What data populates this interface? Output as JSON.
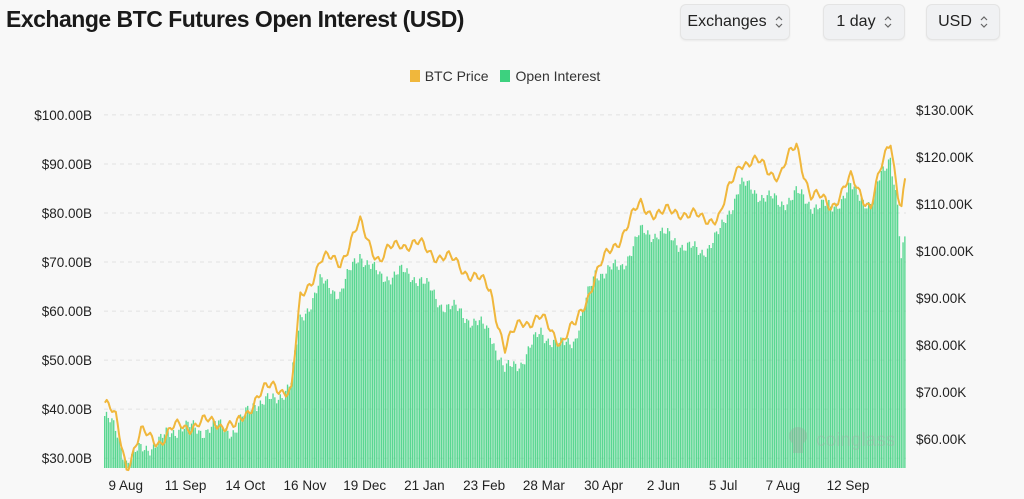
{
  "header": {
    "title": "Exchange BTC Futures Open Interest (USD)"
  },
  "controls": [
    {
      "label": "Exchanges"
    },
    {
      "label": "1 day"
    },
    {
      "label": "USD"
    }
  ],
  "watermark": "coinglass",
  "colors": {
    "price": "#f0b73c",
    "oi": "#3dd17f",
    "grid": "#e2e2e2"
  },
  "chart_data": {
    "type": "bar+line",
    "title": "Exchange BTC Futures Open Interest (USD)",
    "legend": [
      "BTC Price",
      "Open Interest"
    ],
    "legend_position": "top-center",
    "x_days": 443,
    "x_ticks": [
      {
        "day": 12,
        "label": "9 Aug"
      },
      {
        "day": 45,
        "label": "11 Sep"
      },
      {
        "day": 78,
        "label": "14 Oct"
      },
      {
        "day": 111,
        "label": "16 Nov"
      },
      {
        "day": 144,
        "label": "19 Dec"
      },
      {
        "day": 177,
        "label": "21 Jan"
      },
      {
        "day": 210,
        "label": "23 Feb"
      },
      {
        "day": 243,
        "label": "28 Mar"
      },
      {
        "day": 276,
        "label": "30 Apr"
      },
      {
        "day": 309,
        "label": "2 Jun"
      },
      {
        "day": 342,
        "label": "5 Jul"
      },
      {
        "day": 375,
        "label": "7 Aug"
      },
      {
        "day": 411,
        "label": "12 Sep"
      }
    ],
    "y_left": {
      "label": "Open Interest",
      "ylim": [
        28,
        101
      ],
      "ticks": [
        {
          "v": 30,
          "label": "$30.00B"
        },
        {
          "v": 40,
          "label": "$40.00B"
        },
        {
          "v": 50,
          "label": "$50.00B"
        },
        {
          "v": 60,
          "label": "$60.00B"
        },
        {
          "v": 70,
          "label": "$70.00B"
        },
        {
          "v": 80,
          "label": "$80.00B"
        },
        {
          "v": 90,
          "label": "$90.00B"
        },
        {
          "v": 100,
          "label": "$100.00B"
        }
      ]
    },
    "y_right": {
      "label": "BTC Price",
      "ylim": [
        53.8,
        130
      ],
      "ticks": [
        {
          "v": 60,
          "label": "$60.00K"
        },
        {
          "v": 70,
          "label": "$70.00K"
        },
        {
          "v": 80,
          "label": "$80.00K"
        },
        {
          "v": 90,
          "label": "$90.00K"
        },
        {
          "v": 100,
          "label": "$100.00K"
        },
        {
          "v": 110,
          "label": "$110.00K"
        },
        {
          "v": 120,
          "label": "$120.00K"
        },
        {
          "v": 130,
          "label": "$130.00K"
        }
      ]
    },
    "series": [
      {
        "name": "Open Interest",
        "unit": "B USD",
        "points": [
          [
            0,
            38.6
          ],
          [
            6,
            35.6
          ],
          [
            12,
            29.6
          ],
          [
            20,
            31.6
          ],
          [
            31,
            33.6
          ],
          [
            42,
            36.6
          ],
          [
            53,
            35.6
          ],
          [
            61,
            36.6
          ],
          [
            72,
            35.6
          ],
          [
            83,
            41.6
          ],
          [
            94,
            41.6
          ],
          [
            103,
            45.7
          ],
          [
            108,
            57.7
          ],
          [
            119,
            65.8
          ],
          [
            130,
            63.8
          ],
          [
            141,
            71.8
          ],
          [
            152,
            66.8
          ],
          [
            163,
            67.8
          ],
          [
            174,
            66.8
          ],
          [
            185,
            61.8
          ],
          [
            196,
            59.8
          ],
          [
            213,
            55.7
          ],
          [
            221,
            47.7
          ],
          [
            230,
            49.7
          ],
          [
            241,
            55.7
          ],
          [
            252,
            52.7
          ],
          [
            260,
            54.7
          ],
          [
            271,
            67.8
          ],
          [
            285,
            68.8
          ],
          [
            296,
            75.9
          ],
          [
            307,
            75.9
          ],
          [
            318,
            73.8
          ],
          [
            329,
            71.8
          ],
          [
            340,
            75.9
          ],
          [
            351,
            85.9
          ],
          [
            362,
            83.9
          ],
          [
            373,
            81.9
          ],
          [
            382,
            83.9
          ],
          [
            390,
            81.9
          ],
          [
            401,
            80.9
          ],
          [
            412,
            84.9
          ],
          [
            423,
            81.9
          ],
          [
            434,
            91.9
          ],
          [
            438,
            81.9
          ],
          [
            440,
            69.8
          ],
          [
            442,
            74.6
          ]
        ]
      },
      {
        "name": "BTC Price",
        "unit": "K USD",
        "points": [
          [
            0,
            67.7
          ],
          [
            6,
            64
          ],
          [
            12,
            54.5
          ],
          [
            20,
            60.9
          ],
          [
            31,
            59.8
          ],
          [
            42,
            63
          ],
          [
            53,
            63
          ],
          [
            61,
            64
          ],
          [
            72,
            62
          ],
          [
            83,
            68.7
          ],
          [
            94,
            71.5
          ],
          [
            103,
            70
          ],
          [
            108,
            89.6
          ],
          [
            119,
            98
          ],
          [
            130,
            98
          ],
          [
            141,
            105.5
          ],
          [
            152,
            98
          ],
          [
            163,
            102
          ],
          [
            174,
            101
          ],
          [
            185,
            99
          ],
          [
            196,
            97
          ],
          [
            213,
            91.7
          ],
          [
            221,
            79
          ],
          [
            230,
            85.3
          ],
          [
            241,
            85.3
          ],
          [
            252,
            81
          ],
          [
            260,
            84
          ],
          [
            271,
            95
          ],
          [
            285,
            103.4
          ],
          [
            296,
            109.8
          ],
          [
            307,
            107.7
          ],
          [
            318,
            108.7
          ],
          [
            329,
            106.6
          ],
          [
            340,
            107.7
          ],
          [
            351,
            119.4
          ],
          [
            362,
            118.3
          ],
          [
            373,
            116.2
          ],
          [
            382,
            122.6
          ],
          [
            390,
            111.9
          ],
          [
            401,
            109.8
          ],
          [
            412,
            115
          ],
          [
            423,
            109.8
          ],
          [
            434,
            123.6
          ],
          [
            438,
            113
          ],
          [
            440,
            110
          ],
          [
            442,
            115
          ]
        ]
      }
    ]
  }
}
